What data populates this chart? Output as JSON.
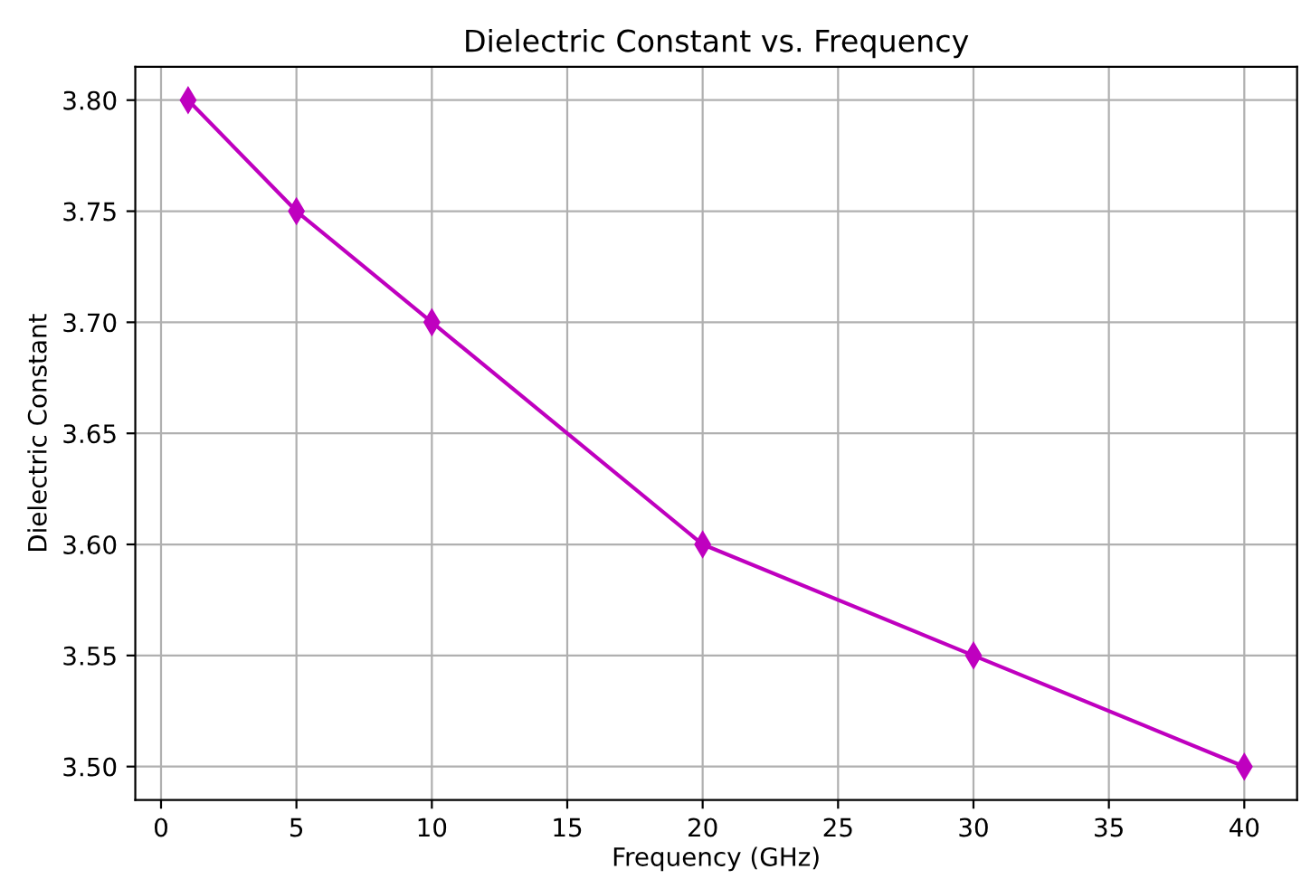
{
  "chart_data": {
    "type": "line",
    "title": "Dielectric Constant vs. Frequency",
    "xlabel": "Frequency (GHz)",
    "ylabel": "Dielectric Constant",
    "x": [
      1,
      5,
      10,
      20,
      30,
      40
    ],
    "series": [
      {
        "color": "#bf00bf",
        "values": [
          3.8,
          3.75,
          3.7,
          3.6,
          3.55,
          3.5
        ]
      }
    ],
    "xlim": [
      -0.95,
      41.95
    ],
    "xticks": [
      0,
      5,
      10,
      15,
      20,
      25,
      30,
      35,
      40
    ],
    "ylim": [
      3.485,
      3.815
    ],
    "yticks": [
      {
        "value": 3.5,
        "label": "3.50"
      },
      {
        "value": 3.55,
        "label": "3.55"
      },
      {
        "value": 3.6,
        "label": "3.60"
      },
      {
        "value": 3.65,
        "label": "3.65"
      },
      {
        "value": 3.7,
        "label": "3.70"
      },
      {
        "value": 3.75,
        "label": "3.75"
      },
      {
        "value": 3.8,
        "label": "3.80"
      }
    ],
    "grid": true,
    "marker": "diamond",
    "line_style": "solid"
  }
}
